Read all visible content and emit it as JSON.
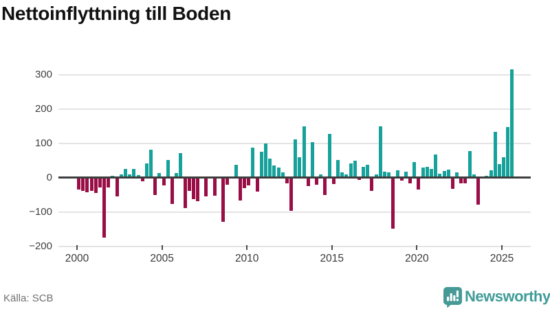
{
  "header": {
    "title": "Nettoinflyttning till Boden"
  },
  "footer": {
    "source": "Källa: SCB",
    "brand_name": "Newsworthy"
  },
  "colors": {
    "positive_bar": "#16a19a",
    "negative_bar": "#990e46",
    "zero_line": "#3d3d3d",
    "gridline": "#e4e4e4",
    "brand_teal": "#3f9c98",
    "brand_icon_teal": "#459a95"
  },
  "chart_data": {
    "type": "bar",
    "title": "Nettoinflyttning till Boden",
    "frequency": "quarterly",
    "x_start": "2000-Q1",
    "x_end": "2025-Q3",
    "xticks": [
      2000,
      2005,
      2010,
      2015,
      2020,
      2025
    ],
    "ytick_values": [
      300,
      200,
      100,
      0,
      -100,
      -200
    ],
    "ytick_labels": [
      "300",
      "200",
      "100",
      "0",
      "−100",
      "−200"
    ],
    "ylim": [
      -200,
      320
    ],
    "grid": "horizontal",
    "legend": "none",
    "values": [
      -35,
      -38,
      -42,
      -38,
      -45,
      -28,
      -175,
      -28,
      5,
      -55,
      10,
      26,
      10,
      26,
      8,
      -10,
      42,
      82,
      -51,
      13,
      -22,
      51,
      -77,
      13,
      72,
      -88,
      -39,
      -62,
      -69,
      0,
      -55,
      0,
      -52,
      0,
      -128,
      -21,
      0,
      38,
      -66,
      -30,
      -23,
      87,
      -41,
      76,
      100,
      55,
      35,
      30,
      15,
      -17,
      -96,
      112,
      60,
      150,
      -24,
      104,
      -21,
      10,
      -50,
      128,
      -19,
      51,
      16,
      10,
      42,
      50,
      -6,
      31,
      38,
      -39,
      10,
      150,
      17,
      15,
      -148,
      22,
      -8,
      18,
      -17,
      45,
      -34,
      30,
      32,
      26,
      68,
      11,
      19,
      23,
      -32,
      16,
      -16,
      -17,
      78,
      10,
      -78,
      -3,
      5,
      21,
      133,
      40,
      59,
      148,
      315
    ],
    "positive_color": "#16a19a",
    "negative_color": "#990e46"
  }
}
